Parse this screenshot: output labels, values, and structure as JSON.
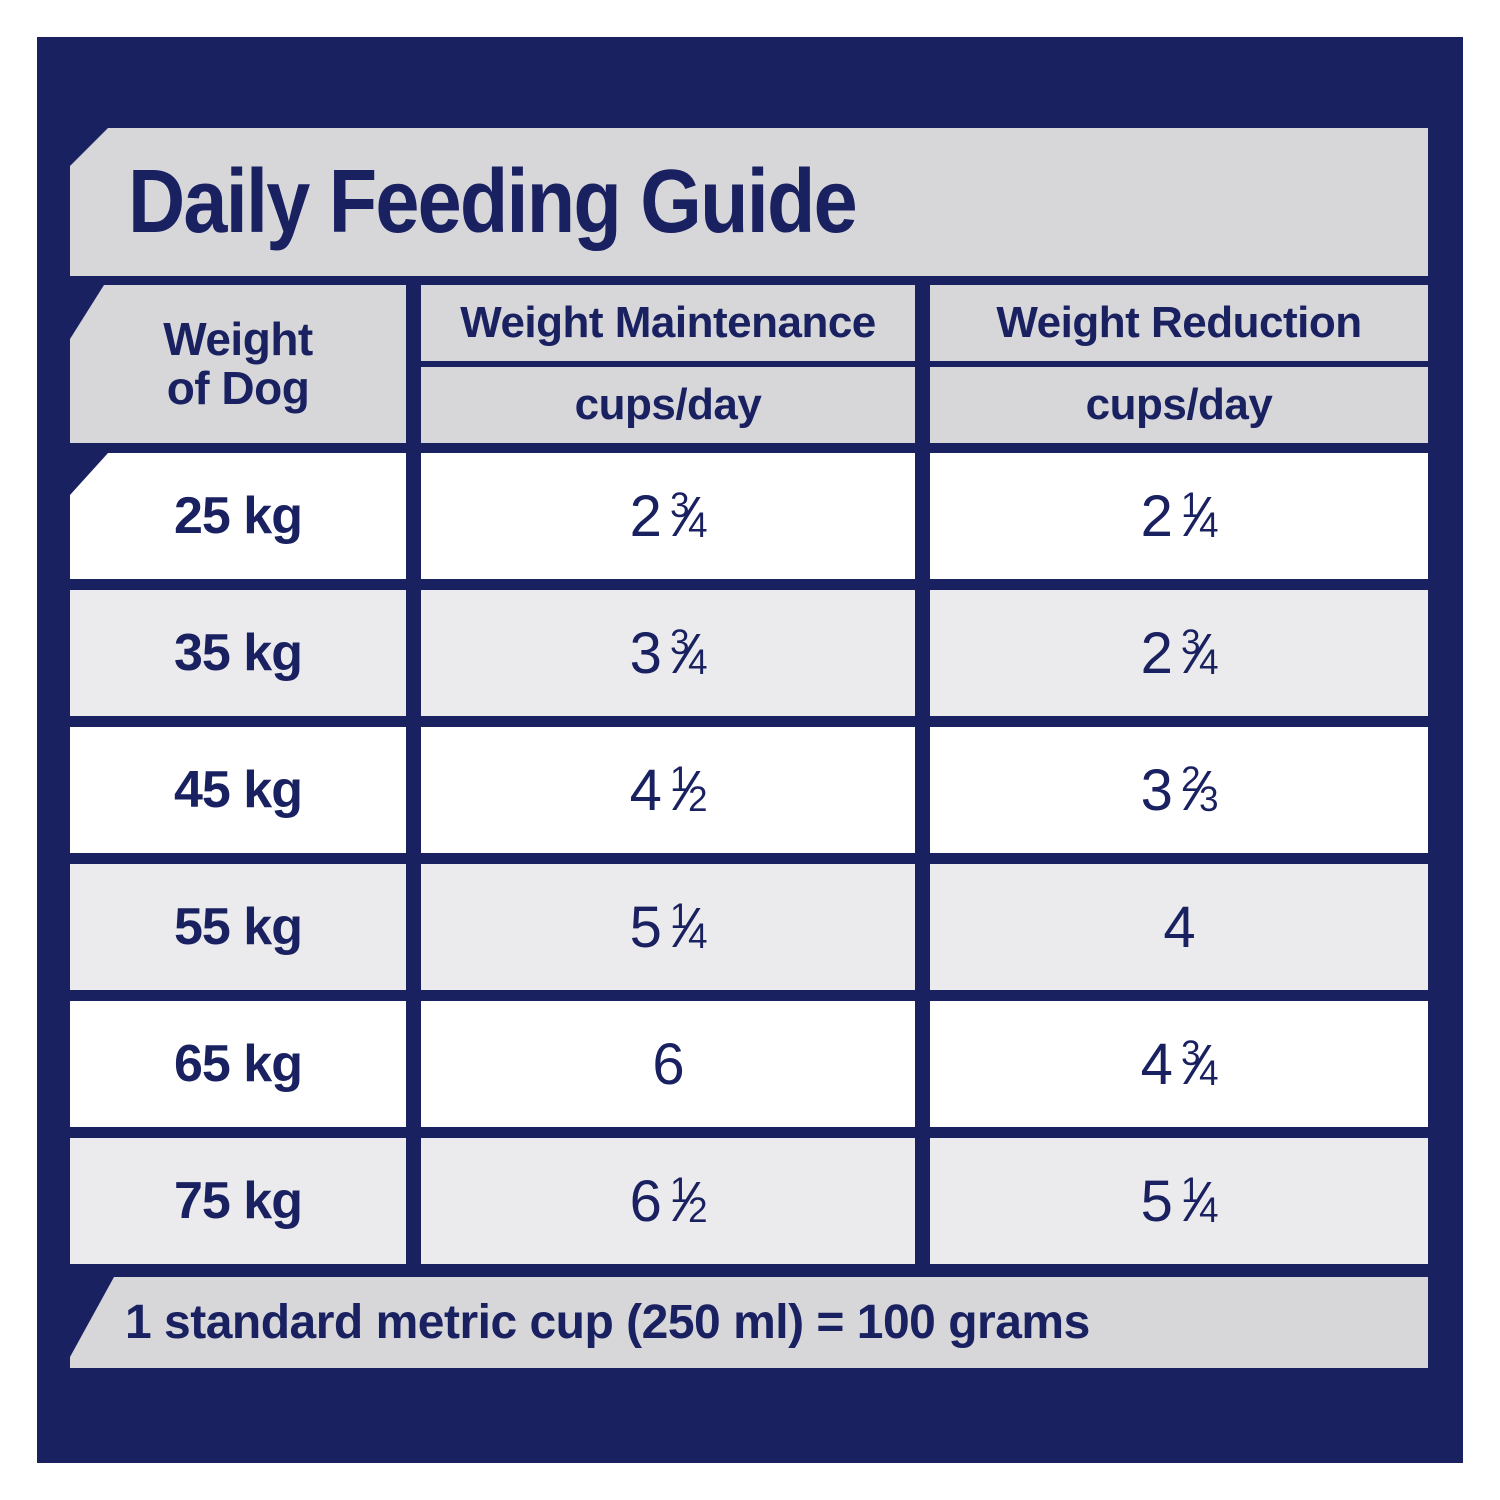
{
  "title": "Daily Feeding Guide",
  "table": {
    "weight_header": {
      "line1": "Weight",
      "line2": "of Dog"
    },
    "columns": [
      {
        "label": "Weight Maintenance",
        "unit": "cups/day"
      },
      {
        "label": "Weight Reduction",
        "unit": "cups/day"
      }
    ],
    "rows": [
      {
        "weight": "25 kg",
        "maintenance": "2 3/4",
        "reduction": "2 1/4"
      },
      {
        "weight": "35 kg",
        "maintenance": "3 3/4",
        "reduction": "2 3/4"
      },
      {
        "weight": "45 kg",
        "maintenance": "4 1/2",
        "reduction": "3 2/3"
      },
      {
        "weight": "55 kg",
        "maintenance": "5 1/4",
        "reduction": "4"
      },
      {
        "weight": "65 kg",
        "maintenance": "6",
        "reduction": "4 3/4"
      },
      {
        "weight": "75 kg",
        "maintenance": "6 1/2",
        "reduction": "5 1/4"
      }
    ]
  },
  "footer": {
    "note": "1 standard metric cup (250 ml) = 100 grams"
  },
  "colors": {
    "navy": "#1A2161",
    "bar_gray": "#D7D7DA",
    "row_gray": "#EBEBED",
    "row_white": "#FFFFFF"
  },
  "chart_data": {
    "type": "table",
    "title": "Daily Feeding Guide",
    "columns": [
      "Weight of Dog",
      "Weight Maintenance (cups/day)",
      "Weight Reduction (cups/day)"
    ],
    "rows": [
      [
        "25 kg",
        "2 3/4",
        "2 1/4"
      ],
      [
        "35 kg",
        "3 3/4",
        "2 3/4"
      ],
      [
        "45 kg",
        "4 1/2",
        "3 2/3"
      ],
      [
        "55 kg",
        "5 1/4",
        "4"
      ],
      [
        "65 kg",
        "6",
        "4 3/4"
      ],
      [
        "75 kg",
        "6 1/2",
        "5 1/4"
      ]
    ],
    "weights_kg": [
      25,
      35,
      45,
      55,
      65,
      75
    ],
    "maintenance_cups_per_day": [
      2.75,
      3.75,
      4.5,
      5.25,
      6,
      6.5
    ],
    "reduction_cups_per_day": [
      2.25,
      2.75,
      3.67,
      4,
      4.75,
      5.25
    ],
    "note": "1 standard metric cup (250 ml) = 100 grams"
  }
}
